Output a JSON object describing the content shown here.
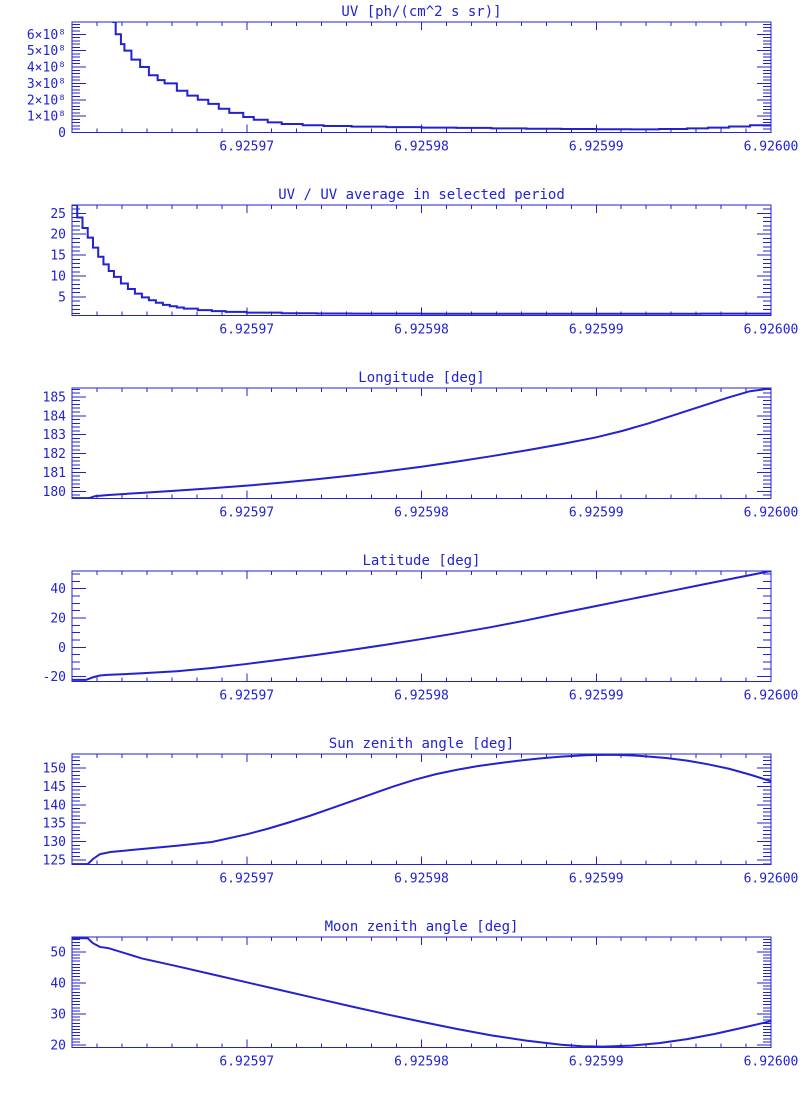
{
  "page": {
    "background": "#ffffff"
  },
  "colors": {
    "accent": "#2222d0",
    "line": "#2222d0"
  },
  "chart_data": [
    {
      "type": "line",
      "title": "UV [ph/(cm^2 s sr)]",
      "xlabel": "",
      "ylabel": "",
      "xlim": [
        6.92596,
        6.926
      ],
      "xticks": [
        6.92597,
        6.92598,
        6.92599,
        6.926
      ],
      "xtick_labels": [
        "6.92597",
        "6.92598",
        "6.92599",
        "6.92600"
      ],
      "x_minor_divisions": 7,
      "ylim": [
        0,
        675000000
      ],
      "yticks": [
        0,
        100000000,
        200000000,
        300000000,
        400000000,
        500000000,
        600000000
      ],
      "ytick_labels": [
        "0",
        "1×10⁸",
        "2×10⁸",
        "3×10⁸",
        "4×10⁸",
        "5×10⁸",
        "6×10⁸"
      ],
      "yminor": 20000000,
      "grid": false,
      "legend": null,
      "step": true,
      "series": [
        {
          "name": "uv",
          "points": [
            [
              6.9259623,
              675000000
            ],
            [
              6.9259625,
              600000000
            ],
            [
              6.9259628,
              540000000
            ],
            [
              6.925963,
              500000000
            ],
            [
              6.9259634,
              445000000
            ],
            [
              6.9259639,
              400000000
            ],
            [
              6.9259644,
              350000000
            ],
            [
              6.9259649,
              320000000
            ],
            [
              6.9259653,
              300000000
            ],
            [
              6.925966,
              255000000
            ],
            [
              6.9259666,
              225000000
            ],
            [
              6.9259672,
              200000000
            ],
            [
              6.9259678,
              175000000
            ],
            [
              6.9259684,
              145000000
            ],
            [
              6.925969,
              120000000
            ],
            [
              6.9259698,
              95000000
            ],
            [
              6.9259704,
              78000000
            ],
            [
              6.9259712,
              62000000
            ],
            [
              6.925972,
              52000000
            ],
            [
              6.9259732,
              44000000
            ],
            [
              6.9259744,
              40000000
            ],
            [
              6.925976,
              36000000
            ],
            [
              6.925978,
              33000000
            ],
            [
              6.92598,
              30000000
            ],
            [
              6.925982,
              28000000
            ],
            [
              6.925984,
              25000000
            ],
            [
              6.925986,
              23000000
            ],
            [
              6.925988,
              21000000
            ],
            [
              6.92599,
              20000000
            ],
            [
              6.925992,
              19000000
            ],
            [
              6.9259936,
              21000000
            ],
            [
              6.9259952,
              25000000
            ],
            [
              6.9259964,
              30000000
            ],
            [
              6.9259976,
              37000000
            ],
            [
              6.9259988,
              44000000
            ],
            [
              6.926,
              48000000
            ]
          ]
        }
      ]
    },
    {
      "type": "line",
      "title": "UV / UV average in selected period",
      "xlabel": "",
      "ylabel": "",
      "xlim": [
        6.92596,
        6.926
      ],
      "xticks": [
        6.92597,
        6.92598,
        6.92599,
        6.926
      ],
      "xtick_labels": [
        "6.92597",
        "6.92598",
        "6.92599",
        "6.92600"
      ],
      "x_minor_divisions": 7,
      "ylim": [
        0.55,
        27.0
      ],
      "yticks": [
        5,
        10,
        15,
        20,
        25
      ],
      "ytick_labels": [
        "5",
        "10",
        "15",
        "20",
        "25"
      ],
      "yminor": 1,
      "grid": false,
      "legend": null,
      "step": true,
      "series": [
        {
          "name": "uv-ratio",
          "points": [
            [
              6.92596,
              27.0
            ],
            [
              6.9259603,
              24.0
            ],
            [
              6.9259606,
              21.5
            ],
            [
              6.9259609,
              19.2
            ],
            [
              6.9259612,
              16.8
            ],
            [
              6.9259615,
              14.6
            ],
            [
              6.9259618,
              12.8
            ],
            [
              6.9259621,
              11.2
            ],
            [
              6.9259624,
              9.8
            ],
            [
              6.9259628,
              8.2
            ],
            [
              6.9259632,
              6.9
            ],
            [
              6.9259636,
              5.8
            ],
            [
              6.925964,
              4.9
            ],
            [
              6.9259644,
              4.2
            ],
            [
              6.9259648,
              3.6
            ],
            [
              6.9259652,
              3.1
            ],
            [
              6.9259656,
              2.75
            ],
            [
              6.925966,
              2.45
            ],
            [
              6.9259664,
              2.2
            ],
            [
              6.9259672,
              1.85
            ],
            [
              6.925968,
              1.6
            ],
            [
              6.9259688,
              1.42
            ],
            [
              6.92597,
              1.25
            ],
            [
              6.925972,
              1.1
            ],
            [
              6.925974,
              1.03
            ],
            [
              6.925976,
              1.0
            ],
            [
              6.92598,
              0.97
            ],
            [
              6.925984,
              0.96
            ],
            [
              6.925988,
              0.96
            ],
            [
              6.925992,
              0.97
            ],
            [
              6.925996,
              1.0
            ],
            [
              6.926,
              1.05
            ]
          ]
        }
      ]
    },
    {
      "type": "line",
      "title": "Longitude [deg]",
      "xlabel": "",
      "ylabel": "",
      "xlim": [
        6.92596,
        6.926
      ],
      "xticks": [
        6.92597,
        6.92598,
        6.92599,
        6.926
      ],
      "xtick_labels": [
        "6.92597",
        "6.92598",
        "6.92599",
        "6.92600"
      ],
      "x_minor_divisions": 7,
      "ylim": [
        179.62,
        185.47
      ],
      "yticks": [
        180,
        181,
        182,
        183,
        184,
        185
      ],
      "ytick_labels": [
        "180",
        "181",
        "182",
        "183",
        "184",
        "185"
      ],
      "yminor": 0.2,
      "grid": false,
      "legend": null,
      "step": false,
      "series": [
        {
          "name": "longitude",
          "points": [
            [
              6.92596,
              179.64
            ],
            [
              6.925961,
              179.64
            ],
            [
              6.9259613,
              179.74
            ],
            [
              6.925962,
              179.8
            ],
            [
              6.925964,
              179.92
            ],
            [
              6.925966,
              180.04
            ],
            [
              6.925968,
              180.16
            ],
            [
              6.92597,
              180.3
            ],
            [
              6.925972,
              180.46
            ],
            [
              6.925974,
              180.64
            ],
            [
              6.925976,
              180.84
            ],
            [
              6.925978,
              181.06
            ],
            [
              6.92598,
              181.3
            ],
            [
              6.925982,
              181.57
            ],
            [
              6.925984,
              181.86
            ],
            [
              6.925986,
              182.17
            ],
            [
              6.925988,
              182.5
            ],
            [
              6.92599,
              182.86
            ],
            [
              6.9259915,
              183.2
            ],
            [
              6.925993,
              183.6
            ],
            [
              6.9259945,
              184.05
            ],
            [
              6.925996,
              184.5
            ],
            [
              6.9259975,
              184.95
            ],
            [
              6.9259988,
              185.3
            ],
            [
              6.926,
              185.45
            ]
          ]
        }
      ]
    },
    {
      "type": "line",
      "title": "Latitude [deg]",
      "xlabel": "",
      "ylabel": "",
      "xlim": [
        6.92596,
        6.926
      ],
      "xticks": [
        6.92597,
        6.92598,
        6.92599,
        6.926
      ],
      "xtick_labels": [
        "6.92597",
        "6.92598",
        "6.92599",
        "6.92600"
      ],
      "x_minor_divisions": 7,
      "ylim": [
        -23.4,
        52.1
      ],
      "yticks": [
        -20,
        0,
        20,
        40
      ],
      "ytick_labels": [
        "-20",
        "0",
        "20",
        "40"
      ],
      "yminor": 5,
      "grid": false,
      "legend": null,
      "step": false,
      "series": [
        {
          "name": "latitude",
          "points": [
            [
              6.92596,
              -22.3
            ],
            [
              6.9259608,
              -22.3
            ],
            [
              6.9259612,
              -20.5
            ],
            [
              6.9259616,
              -19.3
            ],
            [
              6.925962,
              -18.9
            ],
            [
              6.925964,
              -17.8
            ],
            [
              6.925966,
              -16.4
            ],
            [
              6.925968,
              -14.2
            ],
            [
              6.92597,
              -11.4
            ],
            [
              6.925972,
              -8.4
            ],
            [
              6.925974,
              -5.2
            ],
            [
              6.925976,
              -1.8
            ],
            [
              6.925978,
              1.8
            ],
            [
              6.92598,
              5.6
            ],
            [
              6.925982,
              9.6
            ],
            [
              6.925984,
              13.8
            ],
            [
              6.925986,
              18.4
            ],
            [
              6.925988,
              23.4
            ],
            [
              6.92599,
              28.2
            ],
            [
              6.925992,
              33.0
            ],
            [
              6.925994,
              37.8
            ],
            [
              6.925996,
              42.6
            ],
            [
              6.925998,
              47.4
            ],
            [
              6.926,
              52.1
            ]
          ]
        }
      ]
    },
    {
      "type": "line",
      "title": "Sun zenith angle [deg]",
      "xlabel": "",
      "ylabel": "",
      "xlim": [
        6.92596,
        6.926
      ],
      "xticks": [
        6.92597,
        6.92598,
        6.92599,
        6.926
      ],
      "xtick_labels": [
        "6.92597",
        "6.92598",
        "6.92599",
        "6.92600"
      ],
      "x_minor_divisions": 7,
      "ylim": [
        123.8,
        153.8
      ],
      "yticks": [
        125,
        130,
        135,
        140,
        145,
        150
      ],
      "ytick_labels": [
        "125",
        "130",
        "135",
        "140",
        "145",
        "150"
      ],
      "yminor": 1,
      "grid": false,
      "legend": null,
      "step": false,
      "series": [
        {
          "name": "sun-zenith",
          "points": [
            [
              6.92596,
              123.9
            ],
            [
              6.9259609,
              123.9
            ],
            [
              6.9259612,
              125.3
            ],
            [
              6.9259616,
              126.6
            ],
            [
              6.9259622,
              127.2
            ],
            [
              6.925964,
              128.0
            ],
            [
              6.925966,
              128.9
            ],
            [
              6.925968,
              129.9
            ],
            [
              6.92597,
              132.0
            ],
            [
              6.9259712,
              133.5
            ],
            [
              6.9259724,
              135.2
            ],
            [
              6.9259736,
              137.0
            ],
            [
              6.9259748,
              139.0
            ],
            [
              6.925976,
              141.0
            ],
            [
              6.9259772,
              143.0
            ],
            [
              6.9259784,
              145.0
            ],
            [
              6.9259796,
              146.8
            ],
            [
              6.9259808,
              148.3
            ],
            [
              6.925982,
              149.5
            ],
            [
              6.9259832,
              150.5
            ],
            [
              6.9259844,
              151.3
            ],
            [
              6.9259856,
              152.0
            ],
            [
              6.9259868,
              152.6
            ],
            [
              6.925988,
              153.1
            ],
            [
              6.9259895,
              153.5
            ],
            [
              6.925991,
              153.6
            ],
            [
              6.9259925,
              153.3
            ],
            [
              6.925994,
              152.7
            ],
            [
              6.9259952,
              152.0
            ],
            [
              6.9259964,
              151.0
            ],
            [
              6.9259976,
              149.8
            ],
            [
              6.9259988,
              148.2
            ],
            [
              6.926,
              146.4
            ]
          ]
        }
      ]
    },
    {
      "type": "line",
      "title": "Moon zenith angle [deg]",
      "xlabel": "",
      "ylabel": "",
      "xlim": [
        6.92596,
        6.926
      ],
      "xticks": [
        6.92597,
        6.92598,
        6.92599,
        6.926
      ],
      "xtick_labels": [
        "6.92597",
        "6.92598",
        "6.92599",
        "6.92600"
      ],
      "x_minor_divisions": 7,
      "ylim": [
        19.2,
        54.8
      ],
      "yticks": [
        20,
        30,
        40,
        50
      ],
      "ytick_labels": [
        "20",
        "30",
        "40",
        "50"
      ],
      "yminor": 1,
      "grid": false,
      "legend": null,
      "step": false,
      "series": [
        {
          "name": "moon-zenith",
          "points": [
            [
              6.92596,
              54.4
            ],
            [
              6.9259609,
              54.4
            ],
            [
              6.9259612,
              52.8
            ],
            [
              6.9259616,
              51.6
            ],
            [
              6.9259621,
              51.2
            ],
            [
              6.925964,
              47.9
            ],
            [
              6.925966,
              45.4
            ],
            [
              6.925968,
              42.8
            ],
            [
              6.92597,
              40.2
            ],
            [
              6.925972,
              37.6
            ],
            [
              6.925974,
              35.0
            ],
            [
              6.925976,
              32.4
            ],
            [
              6.925978,
              29.9
            ],
            [
              6.92598,
              27.5
            ],
            [
              6.925982,
              25.2
            ],
            [
              6.925984,
              23.1
            ],
            [
              6.925986,
              21.4
            ],
            [
              6.925988,
              20.1
            ],
            [
              6.9259892,
              19.6
            ],
            [
              6.9259904,
              19.5
            ],
            [
              6.925992,
              19.8
            ],
            [
              6.9259936,
              20.6
            ],
            [
              6.9259952,
              21.9
            ],
            [
              6.9259968,
              23.6
            ],
            [
              6.9259984,
              25.6
            ],
            [
              6.926,
              27.7
            ]
          ]
        }
      ]
    }
  ]
}
